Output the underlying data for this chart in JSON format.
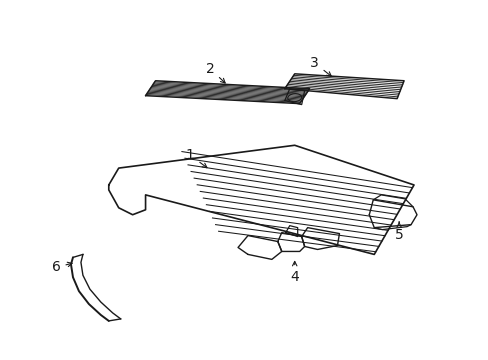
{
  "background_color": "#ffffff",
  "line_color": "#1a1a1a",
  "fig_width": 4.89,
  "fig_height": 3.6,
  "dpi": 100,
  "label_fontsize": 10,
  "label_color": "#1a1a1a"
}
